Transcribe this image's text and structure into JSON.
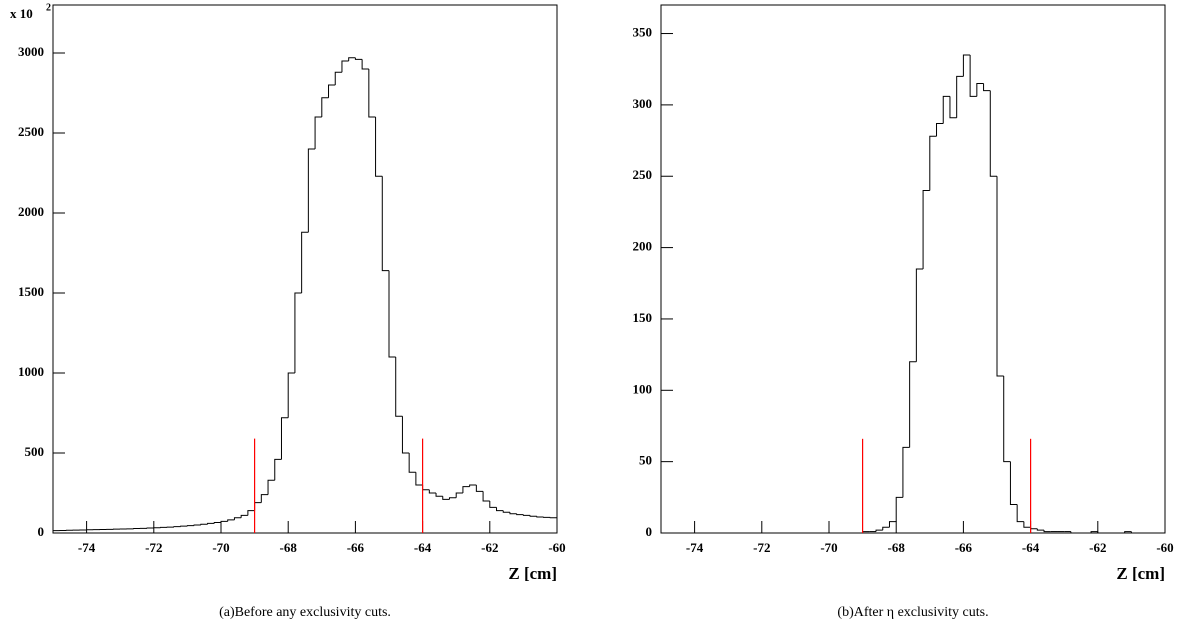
{
  "chart_data": [
    {
      "type": "histogram",
      "y_multiplier": "x 10",
      "y_multiplier_exponent": "2",
      "x_label": "Z [cm]",
      "caption": "(a)Before any exclusivity cuts.",
      "color": "#000000",
      "xlim": [
        -75,
        -60
      ],
      "ylim": [
        0,
        3300
      ],
      "xticks": [
        -74,
        -72,
        -70,
        -68,
        -66,
        -64,
        -62,
        -60
      ],
      "yticks": [
        0,
        500,
        1000,
        1500,
        2000,
        2500,
        3000
      ],
      "bins": [
        -75,
        -74.8,
        -74.6,
        -74.4,
        -74.2,
        -74,
        -73.8,
        -73.6,
        -73.4,
        -73.2,
        -73,
        -72.8,
        -72.6,
        -72.4,
        -72.2,
        -72,
        -71.8,
        -71.6,
        -71.4,
        -71.2,
        -71,
        -70.8,
        -70.6,
        -70.4,
        -70.2,
        -70,
        -69.8,
        -69.6,
        -69.4,
        -69.2,
        -69,
        -68.8,
        -68.6,
        -68.4,
        -68.2,
        -68,
        -67.8,
        -67.6,
        -67.4,
        -67.2,
        -67,
        -66.8,
        -66.6,
        -66.4,
        -66.2,
        -66,
        -65.8,
        -65.6,
        -65.4,
        -65.2,
        -65,
        -64.8,
        -64.6,
        -64.4,
        -64.2,
        -64,
        -63.8,
        -63.6,
        -63.4,
        -63.2,
        -63,
        -62.8,
        -62.6,
        -62.4,
        -62.2,
        -62,
        -61.8,
        -61.6,
        -61.4,
        -61.2,
        -61,
        -60.8,
        -60.6,
        -60.4,
        -60.2,
        -60
      ],
      "values": [
        15,
        16,
        17,
        18,
        19,
        20,
        21,
        22,
        23,
        24,
        25,
        26,
        28,
        29,
        31,
        33,
        35,
        37,
        40,
        43,
        46,
        50,
        55,
        60,
        66,
        73,
        82,
        95,
        110,
        140,
        190,
        240,
        330,
        460,
        720,
        1000,
        1500,
        1880,
        2400,
        2600,
        2720,
        2800,
        2880,
        2950,
        2970,
        2960,
        2900,
        2600,
        2230,
        1640,
        1100,
        730,
        500,
        380,
        300,
        270,
        250,
        230,
        210,
        220,
        250,
        290,
        300,
        260,
        200,
        160,
        140,
        130,
        120,
        115,
        110,
        105,
        100,
        98,
        95
      ],
      "vlines": [
        -69,
        -64
      ],
      "vline_top": 590,
      "vline_color": "#ff0000"
    },
    {
      "type": "histogram",
      "x_label": "Z [cm]",
      "caption": "(b)After η exclusivity cuts.",
      "color": "#000000",
      "xlim": [
        -75,
        -60
      ],
      "ylim": [
        0,
        370
      ],
      "xticks": [
        -74,
        -72,
        -70,
        -68,
        -66,
        -64,
        -62,
        -60
      ],
      "yticks": [
        0,
        50,
        100,
        150,
        200,
        250,
        300,
        350
      ],
      "bins": [
        -75,
        -74.8,
        -74.6,
        -74.4,
        -74.2,
        -74,
        -73.8,
        -73.6,
        -73.4,
        -73.2,
        -73,
        -72.8,
        -72.6,
        -72.4,
        -72.2,
        -72,
        -71.8,
        -71.6,
        -71.4,
        -71.2,
        -71,
        -70.8,
        -70.6,
        -70.4,
        -70.2,
        -70,
        -69.8,
        -69.6,
        -69.4,
        -69.2,
        -69,
        -68.8,
        -68.6,
        -68.4,
        -68.2,
        -68,
        -67.8,
        -67.6,
        -67.4,
        -67.2,
        -67,
        -66.8,
        -66.6,
        -66.4,
        -66.2,
        -66,
        -65.8,
        -65.6,
        -65.4,
        -65.2,
        -65,
        -64.8,
        -64.6,
        -64.4,
        -64.2,
        -64,
        -63.8,
        -63.6,
        -63.4,
        -63.2,
        -63,
        -62.8,
        -62.6,
        -62.4,
        -62.2,
        -62,
        -61.8,
        -61.6,
        -61.4,
        -61.2,
        -61,
        -60.8,
        -60.6,
        -60.4,
        -60.2,
        -60
      ],
      "values": [
        0,
        0,
        0,
        0,
        0,
        0,
        0,
        0,
        0,
        0,
        0,
        0,
        0,
        0,
        0,
        0,
        0,
        0,
        0,
        0,
        0,
        0,
        0,
        0,
        0,
        0,
        0,
        0,
        0,
        0,
        1,
        1,
        2,
        4,
        8,
        25,
        60,
        120,
        185,
        240,
        278,
        287,
        306,
        291,
        320,
        335,
        306,
        315,
        310,
        250,
        110,
        50,
        20,
        8,
        4,
        3,
        2,
        1,
        1,
        1,
        1,
        0,
        0,
        0,
        1,
        0,
        0,
        0,
        0,
        1,
        0,
        0,
        0,
        0,
        0
      ],
      "vlines": [
        -69,
        -64
      ],
      "vline_top": 66,
      "vline_color": "#ff0000"
    }
  ]
}
